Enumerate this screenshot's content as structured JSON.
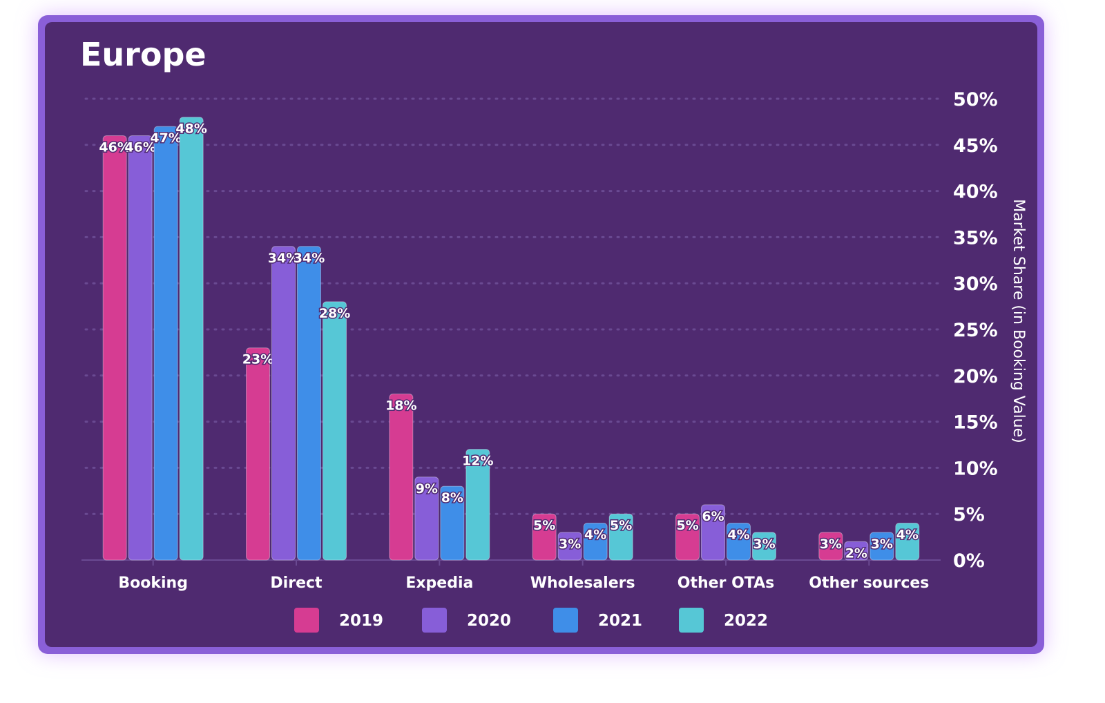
{
  "chart_data": {
    "type": "bar",
    "title": "Europe",
    "ylabel": "Market Share (in Booking Value)",
    "xlabel": "",
    "ylim": [
      0,
      50
    ],
    "yticks": [
      "0%",
      "5%",
      "10%",
      "15%",
      "20%",
      "25%",
      "30%",
      "35%",
      "40%",
      "45%",
      "50%"
    ],
    "ytick_values": [
      0,
      5,
      10,
      15,
      20,
      25,
      30,
      35,
      40,
      45,
      50
    ],
    "grid": true,
    "legend_position": "bottom",
    "categories": [
      "Booking",
      "Direct",
      "Expedia",
      "Wholesalers",
      "Other OTAs",
      "Other sources"
    ],
    "series": [
      {
        "name": "2019",
        "color": "#d63c92",
        "values": [
          46,
          23,
          18,
          5,
          5,
          3
        ]
      },
      {
        "name": "2020",
        "color": "#875ed8",
        "values": [
          46,
          34,
          9,
          3,
          6,
          2
        ]
      },
      {
        "name": "2021",
        "color": "#3f8ee8",
        "values": [
          47,
          34,
          8,
          4,
          4,
          3
        ]
      },
      {
        "name": "2022",
        "color": "#56c7d6",
        "values": [
          48,
          28,
          12,
          5,
          3,
          4
        ]
      }
    ]
  }
}
